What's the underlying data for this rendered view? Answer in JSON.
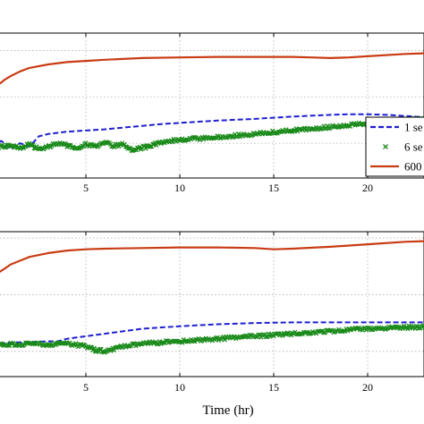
{
  "chart_data": [
    {
      "type": "line",
      "title": "",
      "xlabel": "",
      "ylabel": "",
      "xlim": [
        0,
        24
      ],
      "x_ticks": [
        "5",
        "10",
        "15",
        "20"
      ],
      "grid": true,
      "legend_position": "right",
      "series": [
        {
          "name": "1 se",
          "style": "dashed",
          "color": "#1f1fd0",
          "x": [
            0,
            0.5,
            1,
            1.5,
            2,
            2.5,
            3,
            4,
            5,
            6,
            7,
            8,
            9,
            10,
            12,
            14,
            16,
            18,
            19,
            20,
            21,
            22,
            23,
            24
          ],
          "y": [
            0.58,
            0.62,
            0.55,
            0.6,
            0.57,
            0.66,
            0.68,
            0.7,
            0.71,
            0.72,
            0.735,
            0.75,
            0.765,
            0.775,
            0.795,
            0.81,
            0.83,
            0.845,
            0.85,
            0.85,
            0.845,
            0.835,
            0.825,
            0.82
          ]
        },
        {
          "name": "6 se",
          "style": "markers-x",
          "color": "#1a8a1a",
          "x": [
            0,
            0.5,
            1,
            1.5,
            2,
            2.5,
            3,
            3.5,
            4,
            4.5,
            5,
            5.5,
            6,
            6.5,
            7,
            7.5,
            8,
            8.5,
            9,
            10,
            12,
            14,
            16,
            18,
            20,
            22,
            24
          ],
          "y": [
            0.56,
            0.575,
            0.58,
            0.56,
            0.59,
            0.55,
            0.57,
            0.6,
            0.58,
            0.56,
            0.59,
            0.57,
            0.6,
            0.58,
            0.59,
            0.54,
            0.56,
            0.58,
            0.61,
            0.63,
            0.65,
            0.68,
            0.71,
            0.74,
            0.77,
            0.8,
            0.82
          ]
        },
        {
          "name": "600",
          "style": "solid",
          "color": "#c83c14",
          "x": [
            0,
            0.3,
            0.7,
            1,
            1.5,
            2,
            3,
            4,
            5,
            6,
            8,
            10,
            12,
            14,
            16,
            17,
            18,
            19,
            20,
            22,
            24
          ],
          "y": [
            1.02,
            1.1,
            1.15,
            1.18,
            1.22,
            1.25,
            1.28,
            1.3,
            1.31,
            1.32,
            1.335,
            1.34,
            1.345,
            1.345,
            1.345,
            1.34,
            1.335,
            1.34,
            1.35,
            1.37,
            1.38
          ]
        }
      ]
    },
    {
      "type": "line",
      "title": "",
      "xlabel": "Time (hr)",
      "ylabel": "",
      "xlim": [
        0,
        24
      ],
      "x_ticks": [
        "5",
        "10",
        "15",
        "20"
      ],
      "grid": true,
      "legend_position": "none",
      "series": [
        {
          "style": "dashed",
          "color": "#1f1fd0",
          "x": [
            0,
            1,
            2,
            3,
            3.5,
            4,
            5,
            6,
            7,
            8,
            10,
            12,
            14,
            16,
            18,
            20,
            22,
            24
          ],
          "y": [
            0.56,
            0.57,
            0.575,
            0.58,
            0.58,
            0.6,
            0.62,
            0.64,
            0.66,
            0.68,
            0.7,
            0.715,
            0.725,
            0.73,
            0.73,
            0.73,
            0.73,
            0.73
          ]
        },
        {
          "style": "markers-x",
          "color": "#1a8a1a",
          "x": [
            0,
            1,
            2,
            3,
            4,
            5,
            5.5,
            6,
            6.5,
            7,
            8,
            9,
            10,
            12,
            14,
            16,
            18,
            20,
            22,
            24
          ],
          "y": [
            0.55,
            0.555,
            0.56,
            0.555,
            0.56,
            0.54,
            0.51,
            0.505,
            0.52,
            0.54,
            0.56,
            0.57,
            0.58,
            0.6,
            0.62,
            0.64,
            0.66,
            0.68,
            0.69,
            0.7
          ]
        },
        {
          "style": "solid",
          "color": "#c83c14",
          "x": [
            0,
            0.3,
            0.7,
            1,
            1.5,
            2,
            3,
            4,
            5,
            6,
            8,
            10,
            12,
            14,
            15,
            16,
            18,
            20,
            22,
            24
          ],
          "y": [
            1.06,
            1.12,
            1.16,
            1.19,
            1.22,
            1.25,
            1.28,
            1.3,
            1.31,
            1.315,
            1.32,
            1.325,
            1.325,
            1.32,
            1.31,
            1.315,
            1.33,
            1.35,
            1.37,
            1.38
          ]
        }
      ]
    }
  ]
}
